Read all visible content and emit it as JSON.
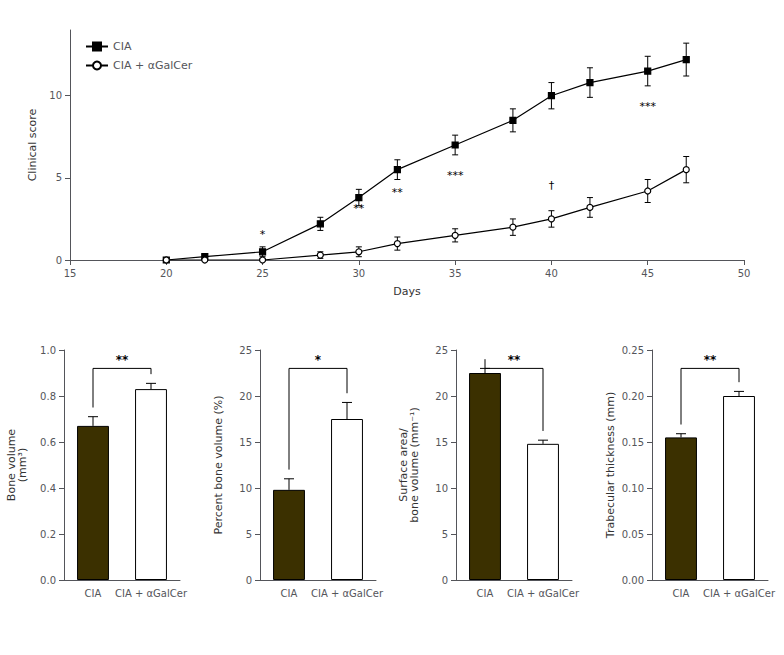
{
  "chart_data": [
    {
      "type": "line",
      "xlabel": "Days",
      "ylabel": "Clinical score",
      "x": [
        20,
        22,
        25,
        28,
        30,
        32,
        35,
        38,
        40,
        42,
        45,
        47
      ],
      "series": [
        {
          "name": "CIA",
          "color": "#000000",
          "marker": "square",
          "values": [
            0.0,
            0.2,
            0.5,
            2.2,
            3.8,
            5.5,
            7.0,
            8.5,
            10.0,
            10.8,
            11.5,
            12.2
          ],
          "errors": [
            0.0,
            0.1,
            0.3,
            0.4,
            0.5,
            0.6,
            0.6,
            0.7,
            0.8,
            0.9,
            0.9,
            1.0
          ]
        },
        {
          "name": "CIA + αGalCer",
          "color": "#000000",
          "marker": "open_circle",
          "values": [
            0.0,
            0.0,
            0.0,
            0.3,
            0.5,
            1.0,
            1.5,
            2.0,
            2.5,
            3.2,
            4.2,
            5.5
          ],
          "errors": [
            0.0,
            0.0,
            0.1,
            0.2,
            0.3,
            0.4,
            0.4,
            0.5,
            0.5,
            0.6,
            0.7,
            0.8
          ]
        }
      ],
      "annotations": [
        {
          "x": 25,
          "y": 1.2,
          "text": "*"
        },
        {
          "x": 30,
          "y": 2.8,
          "text": "**"
        },
        {
          "x": 32,
          "y": 3.8,
          "text": "**"
        },
        {
          "x": 35,
          "y": 4.8,
          "text": "***"
        },
        {
          "x": 40,
          "y": 4.2,
          "text": "†"
        },
        {
          "x": 45,
          "y": 9.0,
          "text": "***"
        }
      ],
      "xlim": [
        15,
        50
      ],
      "xticks": [
        15,
        20,
        25,
        30,
        35,
        40,
        45,
        50
      ],
      "ylim": [
        0,
        14
      ],
      "yticks": [
        0,
        5,
        10
      ],
      "legend": "upper left",
      "grid": false
    },
    {
      "type": "bar",
      "ylabel": "Bone volume\n(mm³)",
      "categories": [
        "CIA",
        "CIA + αGalCer"
      ],
      "values": [
        0.67,
        0.83
      ],
      "yerr_upper": [
        0.04,
        0.025
      ],
      "colors": [
        "#3b3000",
        "#ffffff"
      ],
      "annotations": [
        {
          "text": "**"
        }
      ],
      "ylim": [
        0,
        1.0
      ],
      "yticks": [
        {
          "value": 0.0,
          "label": "0.0"
        },
        0.2,
        0.4,
        0.6,
        0.8,
        {
          "value": 1.0,
          "label": "1.0"
        }
      ],
      "grid": false
    },
    {
      "type": "bar",
      "ylabel": "Percent bone volume (%)",
      "categories": [
        "CIA",
        "CIA + αGalCer"
      ],
      "values": [
        9.8,
        17.5
      ],
      "yerr_upper": [
        1.2,
        1.8
      ],
      "colors": [
        "#3b3000",
        "#ffffff"
      ],
      "annotations": [
        {
          "text": "*"
        }
      ],
      "ylim": [
        0,
        25
      ],
      "yticks": [
        0,
        5,
        10,
        15,
        20,
        25
      ],
      "grid": false
    },
    {
      "type": "bar",
      "ylabel": "Surface area/\nbone volume (mm⁻¹)",
      "categories": [
        "CIA",
        "CIA + αGalCer"
      ],
      "values": [
        22.5,
        14.8
      ],
      "yerr_upper": [
        0.5,
        0.4
      ],
      "colors": [
        "#3b3000",
        "#ffffff"
      ],
      "annotations": [
        {
          "text": "**"
        }
      ],
      "ylim": [
        0,
        25
      ],
      "yticks": [
        0,
        5,
        10,
        15,
        20,
        25
      ],
      "grid": false
    },
    {
      "type": "bar",
      "ylabel": "Trabecular thickness (mm)",
      "categories": [
        "CIA",
        "CIA + αGalCer"
      ],
      "values": [
        0.155,
        0.2
      ],
      "yerr_upper": [
        0.004,
        0.005
      ],
      "colors": [
        "#3b3000",
        "#ffffff"
      ],
      "annotations": [
        {
          "text": "**"
        }
      ],
      "ylim": [
        0.0,
        0.25
      ],
      "yticks": [
        {
          "value": 0.0,
          "label": "0.00"
        },
        {
          "value": 0.05,
          "label": "0.05"
        },
        {
          "value": 0.1,
          "label": "0.10"
        },
        {
          "value": 0.15,
          "label": "0.15"
        },
        {
          "value": 0.2,
          "label": "0.20"
        },
        {
          "value": 0.25,
          "label": "0.25"
        }
      ],
      "grid": false
    }
  ]
}
